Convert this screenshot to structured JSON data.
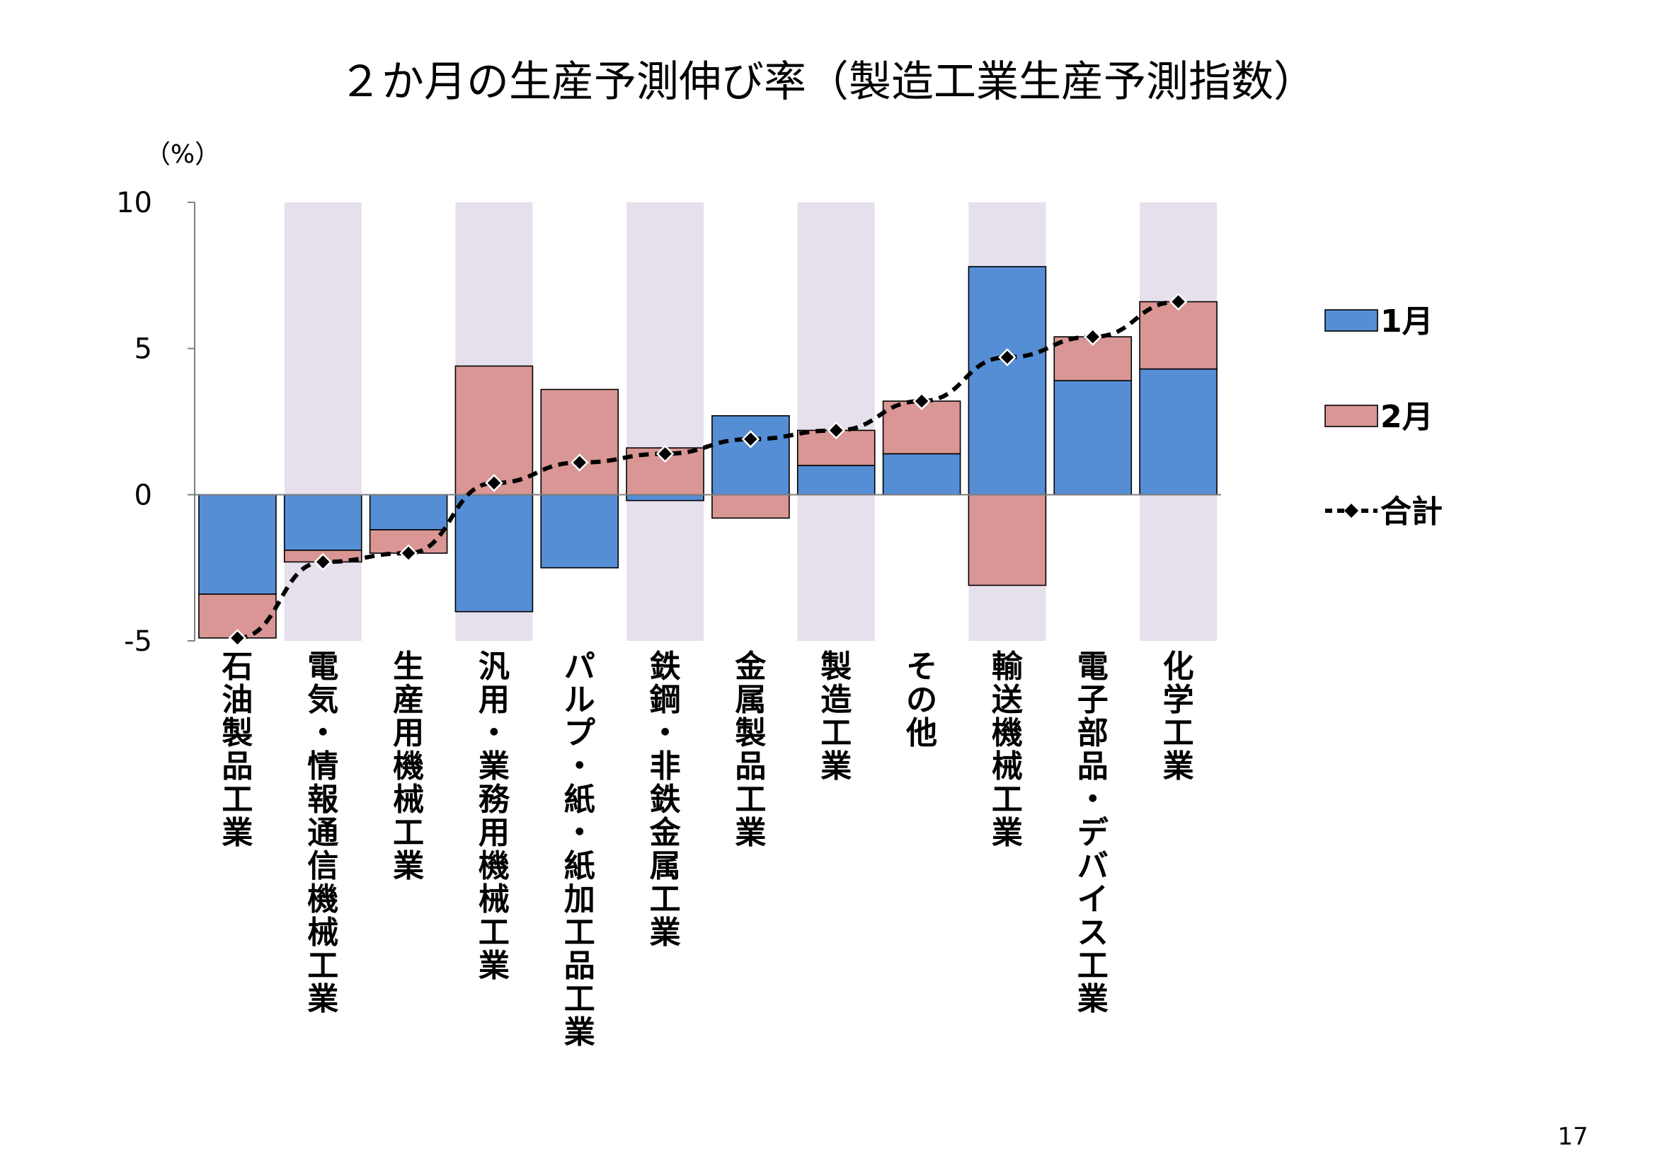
{
  "page": {
    "number": "17"
  },
  "chart_data": {
    "type": "bar",
    "stacked": true,
    "title": "２か月の生産予測伸び率（製造工業生産予測指数）",
    "unit": "（%）",
    "ylim": [
      -5,
      10
    ],
    "yticks": [
      -5,
      0,
      5,
      10
    ],
    "categories": [
      "石油製品工業",
      "電気・情報通信機械工業",
      "生産用機械工業",
      "汎用・業務用機械工業",
      "パルプ・紙・紙加工品工業",
      "鉄鋼・非鉄金属工業",
      "金属製品工業",
      "製造工業",
      "その他",
      "輸送機械工業",
      "電子部品・デバイス工業",
      "化学工業"
    ],
    "shaded_columns": [
      1,
      3,
      5,
      7,
      9,
      11
    ],
    "series": [
      {
        "name": "1月",
        "type": "bar",
        "color": "#558ed5",
        "values": [
          -3.4,
          -1.9,
          -1.2,
          -4.0,
          -2.5,
          -0.2,
          2.7,
          1.0,
          1.4,
          7.8,
          3.9,
          4.3
        ]
      },
      {
        "name": "2月",
        "type": "bar",
        "color": "#d99694",
        "values": [
          -1.5,
          -0.4,
          -0.8,
          4.4,
          3.6,
          1.6,
          -0.8,
          1.2,
          1.8,
          -3.1,
          1.5,
          2.3
        ]
      },
      {
        "name": "合計",
        "type": "line",
        "color": "#000000",
        "values": [
          -4.9,
          -2.3,
          -2.0,
          0.4,
          1.1,
          1.4,
          1.9,
          2.2,
          3.2,
          4.7,
          5.4,
          6.6
        ]
      }
    ],
    "colors": {
      "shade": "#e6e0ec",
      "axis": "#7f7f7f"
    },
    "legend_position": "right"
  }
}
